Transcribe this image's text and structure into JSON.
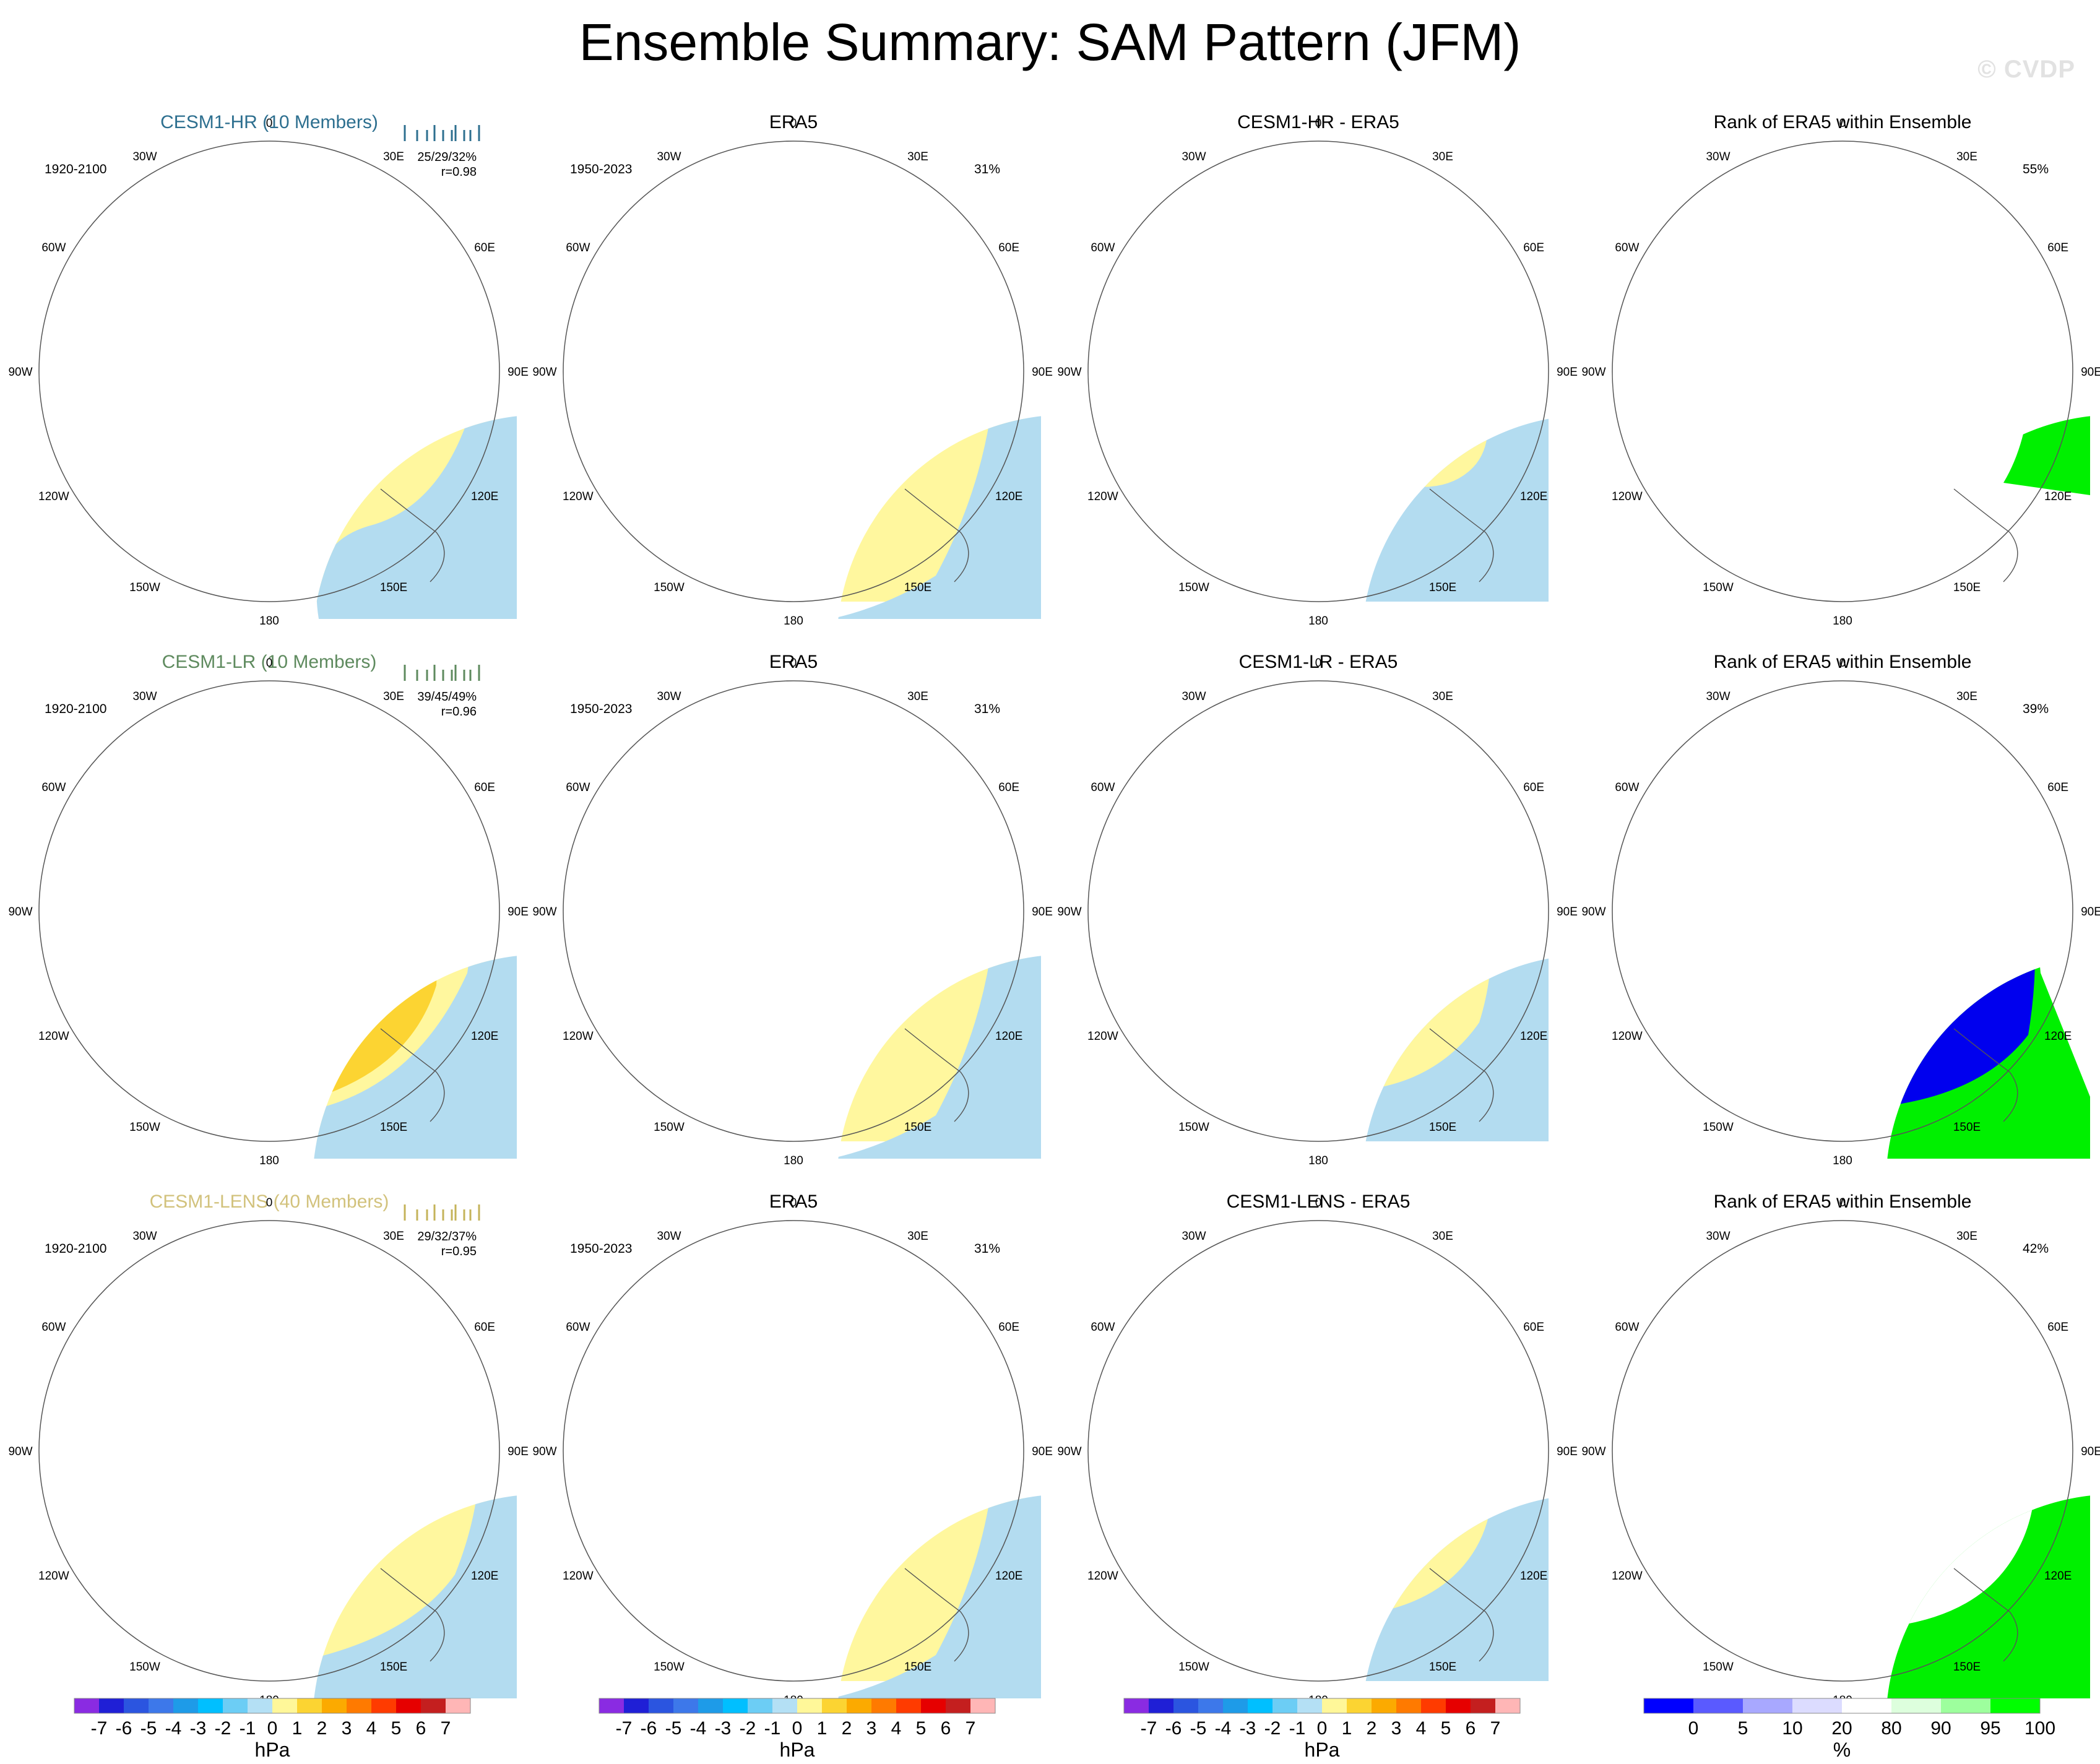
{
  "title": "Ensemble Summary: SAM Pattern (JFM)",
  "watermark": "© CVDP",
  "lon_labels": [
    "0",
    "30E",
    "60E",
    "90E",
    "120E",
    "150E",
    "180",
    "150W",
    "120W",
    "90W",
    "60W",
    "30W"
  ],
  "rows": [
    {
      "model": {
        "title": "CESM1-HR (10 Members)",
        "color": "#2d6f8f",
        "period": "1920-2100",
        "stats": "25/29/32%",
        "r": "r=0.98",
        "rug_color": "#2d6f8f"
      },
      "era5": {
        "title": "ERA5",
        "period": "1950-2023",
        "pct": "31%"
      },
      "diff": {
        "title": "CESM1-HR - ERA5"
      },
      "rank": {
        "title": "Rank of ERA5 within Ensemble",
        "pct": "55%"
      }
    },
    {
      "model": {
        "title": "CESM1-LR (10 Members)",
        "color": "#5e8a5e",
        "period": "1920-2100",
        "stats": "39/45/49%",
        "r": "r=0.96",
        "rug_color": "#5e8a5e"
      },
      "era5": {
        "title": "ERA5",
        "period": "1950-2023",
        "pct": "31%"
      },
      "diff": {
        "title": "CESM1-LR - ERA5"
      },
      "rank": {
        "title": "Rank of ERA5 within Ensemble",
        "pct": "39%"
      }
    },
    {
      "model": {
        "title": "CESM1-LENS (40 Members)",
        "color": "#d2c27c",
        "period": "1920-2100",
        "stats": "29/32/37%",
        "r": "r=0.95",
        "rug_color": "#c4b35a"
      },
      "era5": {
        "title": "ERA5",
        "period": "1950-2023",
        "pct": "31%"
      },
      "diff": {
        "title": "CESM1-LENS - ERA5"
      },
      "rank": {
        "title": "Rank of ERA5 within Ensemble",
        "pct": "42%"
      }
    }
  ],
  "colorbar_hpa": {
    "labels": [
      "-7",
      "-6",
      "-5",
      "-4",
      "-3",
      "-2",
      "-1",
      "0",
      "1",
      "2",
      "3",
      "4",
      "5",
      "6",
      "7"
    ],
    "colors": [
      "#8a2be2",
      "#1f1fd6",
      "#2b55e0",
      "#3d78ea",
      "#1e9be8",
      "#00bfff",
      "#6ccdf5",
      "#b4e0f5",
      "#fff799",
      "#fcd432",
      "#fcaa00",
      "#ff7a00",
      "#ff3b00",
      "#e60000",
      "#c41f1f",
      "#ffb6b6"
    ],
    "unit": "hPa"
  },
  "colorbar_rank": {
    "labels": [
      "0",
      "5",
      "10",
      "20",
      "80",
      "90",
      "95",
      "100"
    ],
    "colors": [
      "#0000ff",
      "#5a5aff",
      "#a8a8ff",
      "#dcdcff",
      "#ffffff",
      "#ddffdd",
      "#9dff9d",
      "#00ff00"
    ],
    "unit": "%"
  },
  "colors": {
    "light_blue": "#b3dcf0",
    "pale_yellow": "#fff79e",
    "mid_blue": "#66c4f0",
    "cyan": "#00bbff",
    "dark_blue": "#2a88e6",
    "orange_yellow": "#fcd432",
    "rank_blue": "#0000ee",
    "rank_green": "#00f000",
    "rank_pale_green": "#cfffcf"
  }
}
